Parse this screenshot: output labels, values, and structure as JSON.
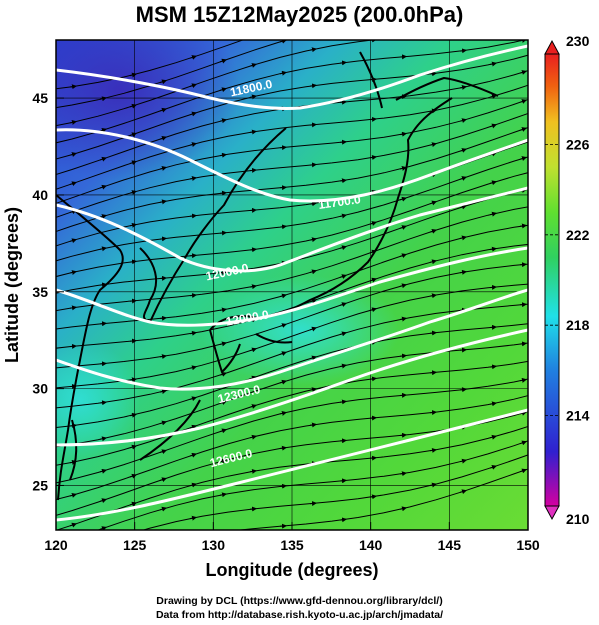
{
  "title": "MSM 15Z12May2025 (200.0hPa)",
  "map": {
    "lon_range": [
      120,
      150
    ],
    "lat_range": [
      22.7,
      48
    ],
    "xlabel": "Longitude (degrees)",
    "ylabel": "Latitude  (degrees)",
    "x_ticks": [
      "120",
      "125",
      "130",
      "135",
      "140",
      "145",
      "150"
    ],
    "y_ticks": [
      "25",
      "30",
      "35",
      "40",
      "45"
    ],
    "grid": true,
    "contour_labels": [
      "11800.0",
      "11700.0",
      "12000.0",
      "12000.0",
      "12300.0",
      "12600.0"
    ]
  },
  "colorbar": {
    "min": 210,
    "max": 230,
    "labels": [
      "230",
      "226",
      "222",
      "218",
      "214",
      "210"
    ],
    "colors": [
      "#d400a0",
      "#3020d0",
      "#2080e0",
      "#20e0e8",
      "#30d060",
      "#60e030",
      "#c0e030",
      "#f0c020",
      "#f06010",
      "#e82020"
    ]
  },
  "credits": [
    "Drawing by DCL (https://www.gfd-dennou.org/library/dcl/)",
    "Data from http://database.rish.kyoto-u.ac.jp/arch/jmadata/"
  ]
}
